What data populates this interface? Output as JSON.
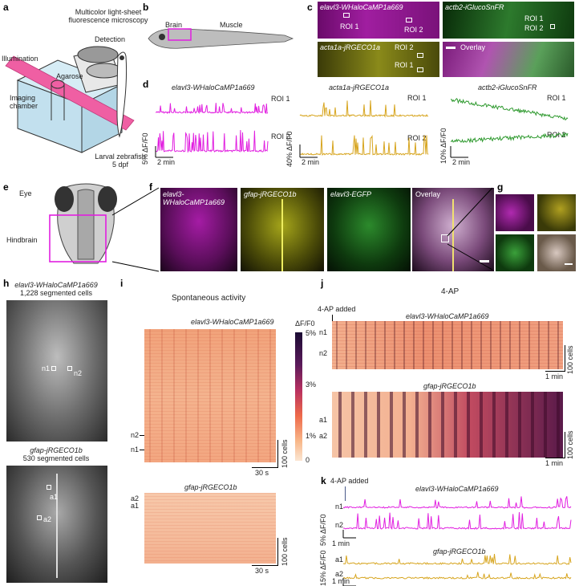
{
  "panels": {
    "a": {
      "letter": "a",
      "title_line1": "Multicolor light-sheet",
      "title_line2": "fluorescence microscopy",
      "illumination": "Illumination",
      "detection": "Detection",
      "agarose": "Agarose",
      "chamber_line1": "Imaging",
      "chamber_line2": "chamber",
      "fish_line1": "Larval zebrafish",
      "fish_line2": "5 dpf"
    },
    "b": {
      "letter": "b",
      "brain": "Brain",
      "muscle": "Muscle"
    },
    "c": {
      "letter": "c",
      "img1_label": "elavl3-WHaloCaMP1a669",
      "img1_roi1": "ROI 1",
      "img1_roi2": "ROI 2",
      "img2_label": "actb2-iGlucoSnFR",
      "img2_roi1": "ROI 1",
      "img2_roi2": "ROI 2",
      "img3_label": "acta1a-jRGECO1a",
      "img3_roi1": "ROI 1",
      "img3_roi2": "ROI 2",
      "img4_label": "Overlay"
    },
    "d": {
      "letter": "d",
      "t1_title": "elavl3-WHaloCaMP1a669",
      "t1_roi1": "ROI 1",
      "t1_roi2": "ROI 2",
      "t1_scale_y": "5% ΔF/F0",
      "t1_scale_x": "2 min",
      "t2_title": "acta1a-jRGECO1a",
      "t2_roi1": "ROI 1",
      "t2_roi2": "ROI 2",
      "t2_scale_y": "40% ΔF/F0",
      "t2_scale_x": "2 min",
      "t3_title": "actb2-iGlucoSnFR",
      "t3_roi1": "ROI 1",
      "t3_roi2": "ROI 2",
      "t3_scale_y": "10% ΔF/F0",
      "t3_scale_x": "2 min"
    },
    "e": {
      "letter": "e",
      "eye": "Eye",
      "hindbrain": "Hindbrain"
    },
    "f": {
      "letter": "f",
      "img1_label_line1": "elavl3-",
      "img1_label_line2": "WHaloCaMP1a669",
      "img2_label": "gfap-jRGECO1b",
      "img3_label": "elavl3-EGFP",
      "img4_label": "Overlay"
    },
    "g": {
      "letter": "g"
    },
    "h": {
      "letter": "h",
      "top_line1": "elavl3-WHaloCaMP1a669",
      "top_line2": "1,228 segmented cells",
      "top_n1": "n1",
      "top_n2": "n2",
      "bottom_line1": "gfap-jRGECO1b",
      "bottom_line2": "530 segmented cells",
      "bottom_a1": "a1",
      "bottom_a2": "a2"
    },
    "i": {
      "letter": "i",
      "title": "Spontaneous activity",
      "top_heatmap_title": "elavl3-WHaloCaMP1a669",
      "top_n2": "n2",
      "top_n1": "n1",
      "top_scale_cells": "100 cells",
      "top_scale_time": "30 s",
      "bottom_heatmap_title": "gfap-jRGECO1b",
      "bottom_a2": "a2",
      "bottom_a1": "a1",
      "bottom_scale_cells": "100 cells",
      "bottom_scale_time": "30 s",
      "colorbar_label": "ΔF/F0",
      "colorbar_ticks": [
        "5%",
        "3%",
        "1%",
        "0"
      ]
    },
    "j": {
      "letter": "j",
      "title": "4-AP",
      "added": "4-AP added",
      "top_heatmap_title": "elavl3-WHaloCaMP1a669",
      "top_n1": "n1",
      "top_n2": "n2",
      "top_scale_cells": "100 cells",
      "top_scale_time": "1 min",
      "bottom_heatmap_title": "gfap-jRGECO1b",
      "bottom_a1": "a1",
      "bottom_a2": "a2",
      "bottom_scale_cells": "100 cells",
      "bottom_scale_time": "1 min"
    },
    "k": {
      "letter": "k",
      "added": "4-AP added",
      "top_title": "elavl3-WHaloCaMP1a669",
      "top_n1": "n1",
      "top_n2": "n2",
      "top_scale_y": "5% ΔF/F0",
      "top_scale_x": "1 min",
      "bottom_title": "gfap-jRGECO1b",
      "bottom_a1": "a1",
      "bottom_a2": "a2",
      "bottom_scale_y": "15% ΔF/F0",
      "bottom_scale_x": "1 min"
    }
  },
  "colors": {
    "magenta": "#e11fe0",
    "yellow": "#d7a51f",
    "green": "#2f9a2f",
    "pink_beam": "#ef5fa3",
    "heat_low": "#fbe6d3",
    "heat_high": "#1a0b33"
  }
}
